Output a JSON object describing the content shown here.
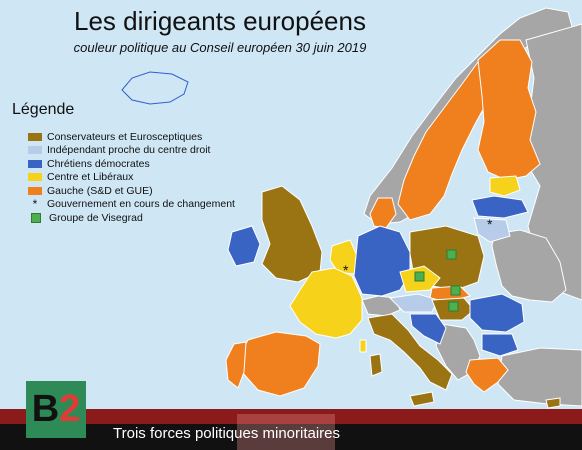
{
  "header": {
    "title": "Les dirigeants européens",
    "subtitle": "couleur politique au Conseil européen 30 juin 2019"
  },
  "legend": {
    "title": "Légende",
    "items": [
      {
        "label": "Conservateurs et Eurosceptiques",
        "color": "#9a7312"
      },
      {
        "label": "Indépendant proche du centre droit",
        "color": "#b6cce8"
      },
      {
        "label": "Chrétiens démocrates",
        "color": "#3a64c4"
      },
      {
        "label": "Centre et Libéraux",
        "color": "#f6d21a"
      },
      {
        "label": "Gauche (S&D et GUE)",
        "color": "#f07f1e"
      },
      {
        "label": "Gouvernement en cours de changement",
        "symbol": "star"
      },
      {
        "label": "Groupe de Visegrad",
        "symbol": "green-square",
        "color": "#4caf50"
      }
    ]
  },
  "footer": {
    "caption": "Trois forces politiques minoritaires",
    "logo_text_1": "B",
    "logo_text_2": "2"
  },
  "colors": {
    "non_eu_land": "#a6a6a6",
    "sea": "#cfe6f5",
    "iceland_outline": "#2f5fd0"
  }
}
